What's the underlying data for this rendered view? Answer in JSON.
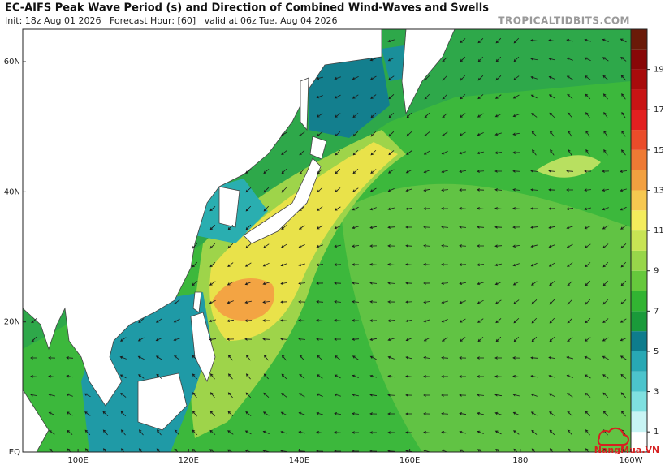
{
  "header": {
    "title": "EC-AIFS Peak Wave Period (s) and Direction of Combined Wind-Waves and Swells",
    "init": "Init: 18z Aug 01 2026   Forecast Hour: [60]   valid at 06z Tue, Aug 04 2026",
    "site": "TROPICALTIDBITS.COM"
  },
  "map": {
    "lat_lim": [
      0,
      65
    ],
    "lon_lim": [
      90,
      200
    ],
    "lat_ticks": [
      {
        "value": 60,
        "label": "60N"
      },
      {
        "value": 40,
        "label": "40N"
      },
      {
        "value": 20,
        "label": "20N"
      },
      {
        "value": 0,
        "label": "EQ"
      }
    ],
    "lon_ticks": [
      {
        "value": 100,
        "label": "100E"
      },
      {
        "value": 120,
        "label": "120E"
      },
      {
        "value": 140,
        "label": "140E"
      },
      {
        "value": 160,
        "label": "160E"
      },
      {
        "value": 180,
        "label": "180"
      },
      {
        "value": 200,
        "label": "160W"
      }
    ]
  },
  "colorbar": {
    "lim": [
      0,
      21
    ],
    "ticks": [
      1,
      3,
      5,
      7,
      9,
      11,
      13,
      15,
      17,
      19
    ],
    "colors": [
      "#ffffff",
      "#c8f4f4",
      "#7fe0e0",
      "#4cc4cc",
      "#28a8b4",
      "#0e7c8c",
      "#1a9a3a",
      "#32b432",
      "#66c83c",
      "#98d64a",
      "#c8e454",
      "#f4ec5c",
      "#f6c850",
      "#f2a040",
      "#ee7a34",
      "#ea4c2a",
      "#e22020",
      "#c81414",
      "#a80c0c",
      "#880808",
      "#6a1a08"
    ]
  },
  "watermark": "NangMua.VN"
}
